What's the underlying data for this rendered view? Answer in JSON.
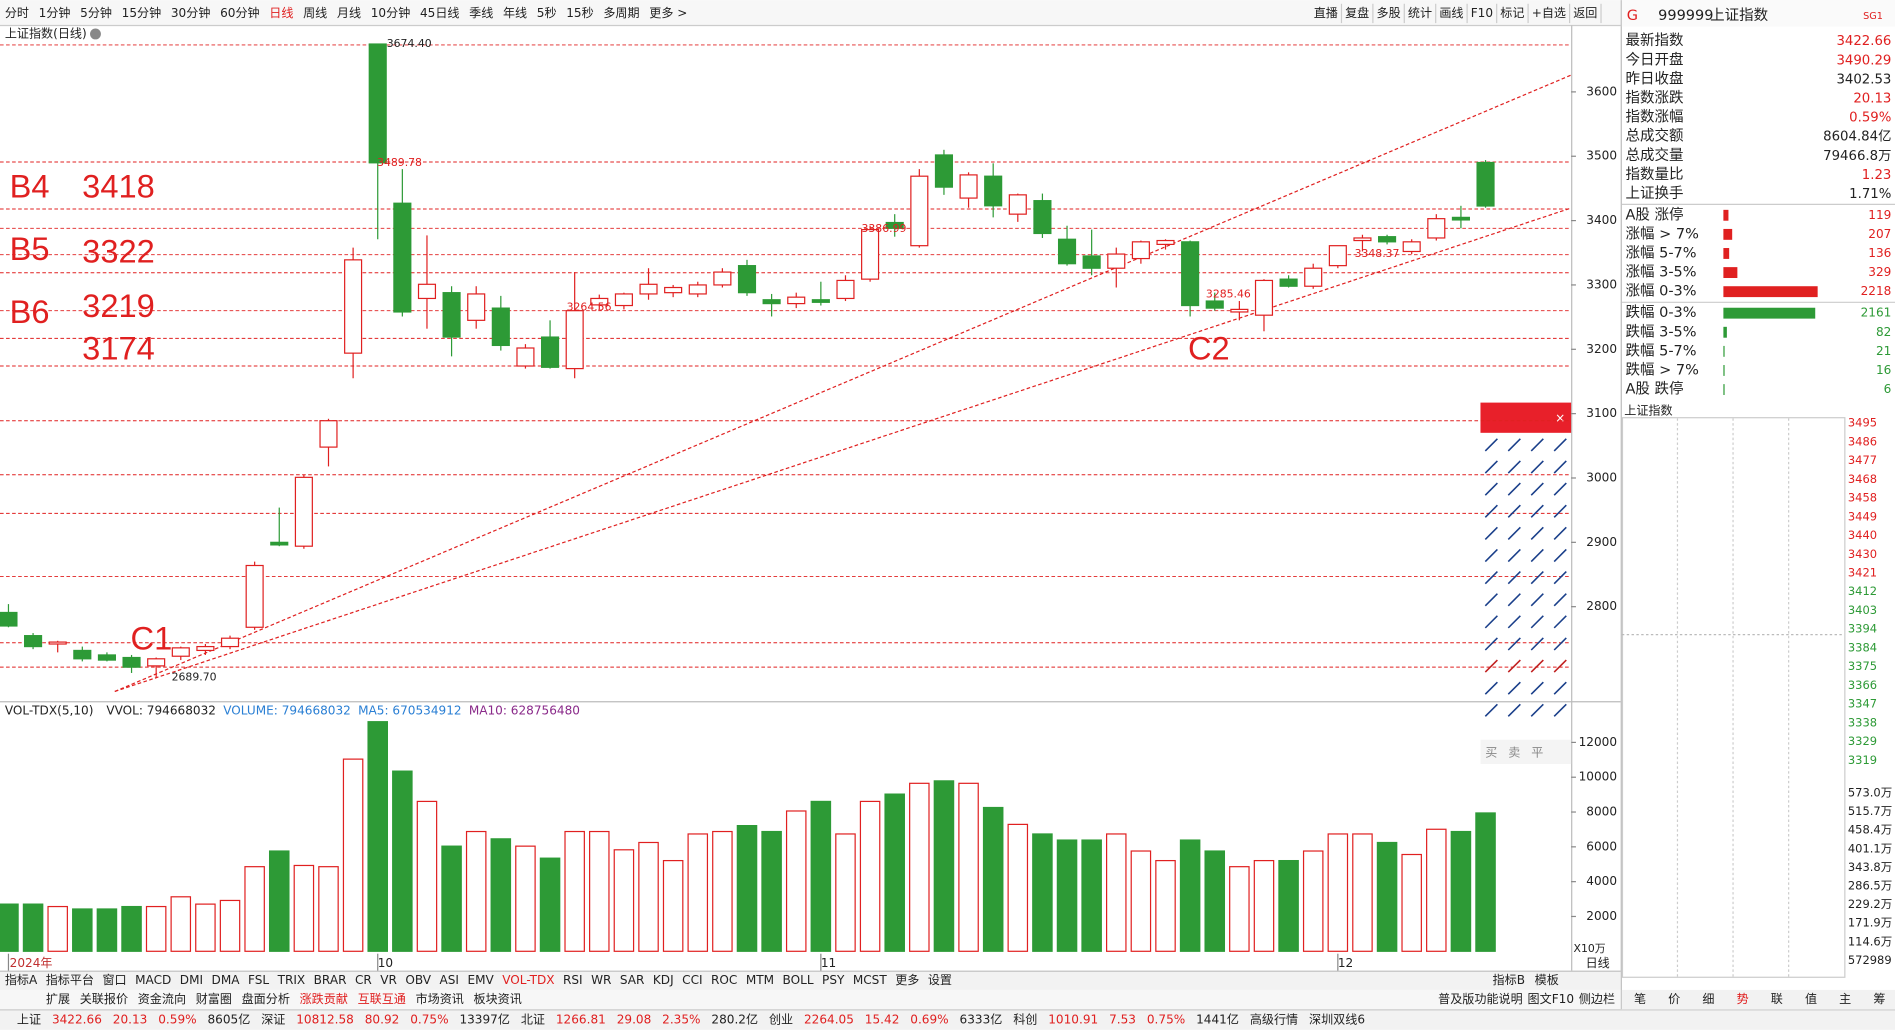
{
  "toolbar": {
    "periods": [
      "分时",
      "1分钟",
      "5分钟",
      "15分钟",
      "30分钟",
      "60分钟",
      {
        "text": "日线",
        "color": "#e02020"
      },
      "周线",
      "月线",
      "10分钟",
      "45日线",
      "季线",
      "年线",
      "5秒",
      "15秒",
      "多周期",
      "更多 >"
    ],
    "tools": [
      "直播",
      "复盘",
      "多股",
      "统计",
      "画线",
      "F10",
      "标记",
      "+自选",
      "返回"
    ]
  },
  "chart_data": [
    {
      "type": "candlestick",
      "title": "上证指数(日线)",
      "categories": [
        "2024年",
        null,
        null,
        null,
        null,
        null,
        null,
        null,
        null,
        null,
        null,
        null,
        null,
        null,
        null,
        "10",
        null,
        null,
        null,
        null,
        null,
        null,
        null,
        null,
        null,
        null,
        null,
        null,
        null,
        null,
        null,
        null,
        null,
        "11",
        null,
        null,
        null,
        null,
        null,
        null,
        null,
        null,
        null,
        null,
        null,
        null,
        null,
        null,
        null,
        null,
        null,
        null,
        null,
        null,
        "12",
        null,
        null,
        null,
        null,
        null,
        null
      ],
      "open": [
        2791,
        2755,
        2742,
        2732,
        2725,
        2721,
        2708,
        2723,
        2732,
        2738,
        2768,
        2900,
        2894,
        3048,
        3194,
        3674.4,
        3427,
        3279,
        3288,
        3245,
        3264,
        3174,
        3219,
        3170,
        3269,
        3268,
        3286,
        3288,
        3286,
        3300,
        3330,
        3277,
        3271,
        3277,
        3279,
        3309,
        3397,
        3361,
        3502,
        3435,
        3469,
        3410,
        3431,
        3371,
        3345,
        3326,
        3341,
        3363,
        3367,
        3275,
        3258,
        3253,
        3309,
        3298,
        3330,
        3369,
        3375,
        3352,
        3373,
        3405,
        3490.29
      ],
      "high": [
        2804,
        2759,
        2747,
        2738,
        2729,
        2725,
        2721,
        2738,
        2742,
        2755,
        2870,
        2954,
        3005,
        3092,
        3358,
        3674.4,
        3480,
        3377,
        3298,
        3298,
        3283,
        3208,
        3245,
        3320,
        3285,
        3288,
        3326,
        3300,
        3305,
        3326,
        3339,
        3286,
        3288,
        3305,
        3315,
        3392,
        3410,
        3480,
        3510,
        3475,
        3489,
        3442,
        3442,
        3392,
        3386,
        3358,
        3369,
        3371,
        3369,
        3288,
        3275,
        3309,
        3315,
        3333,
        3360,
        3378,
        3378,
        3371,
        3410,
        3423,
        3494
      ],
      "low": [
        2768,
        2734,
        2729,
        2715,
        2715,
        2697,
        2689.7,
        2717,
        2725,
        2734,
        2764,
        2894,
        2890,
        3018,
        3155,
        3371,
        3251,
        3232,
        3189,
        3232,
        3198,
        3170,
        3170,
        3155,
        3262,
        3262,
        3277,
        3281,
        3281,
        3296,
        3283,
        3251,
        3264,
        3268,
        3275,
        3305,
        3375,
        3358,
        3440,
        3420,
        3405,
        3398,
        3373,
        3330,
        3315,
        3296,
        3333,
        3355,
        3251,
        3260,
        3245,
        3228,
        3296,
        3294,
        3326,
        3352,
        3363,
        3348,
        3369,
        3388,
        3420
      ],
      "close": [
        2770,
        2738,
        2745,
        2719,
        2717,
        2706,
        2719,
        2736,
        2738,
        2751,
        2864,
        2896,
        3001,
        3089,
        3339,
        3489.78,
        3258,
        3301,
        3219,
        3286,
        3206,
        3202,
        3172,
        3260,
        3279,
        3286,
        3301,
        3296,
        3300,
        3320,
        3288,
        3271,
        3281,
        3273,
        3307,
        3386,
        3388,
        3469,
        3452,
        3471,
        3423,
        3440,
        3380,
        3333,
        3326,
        3348,
        3367,
        3369,
        3268,
        3264,
        3262,
        3307,
        3298,
        3326,
        3361,
        3373,
        3367,
        3367,
        3403,
        3401,
        3422.66
      ],
      "up_color": "#e02020",
      "down_color": "#2d9a36",
      "ylim": [
        2657,
        3705
      ],
      "yticks": [
        2800,
        2900,
        3000,
        3100,
        3200,
        3300,
        3400,
        3500,
        3600
      ],
      "hlines": [
        3673,
        3491,
        3418,
        3388,
        3347,
        3319,
        3260,
        3217,
        3174,
        3089,
        3005,
        2945,
        2847,
        2744,
        2706
      ],
      "price_labels": [
        {
          "value": 3674.4,
          "label": "3674.40"
        },
        {
          "value": 3489.78,
          "label": "3489.78"
        },
        {
          "value": 2689.7,
          "label": "2689.70"
        },
        {
          "value": 3386.99,
          "label": "3386.99"
        },
        {
          "value": 3264.56,
          "label": "3264.56"
        },
        {
          "value": 3285.46,
          "label": "3285.46"
        },
        {
          "value": 3348.37,
          "label": "3348.37"
        }
      ],
      "annotations": [
        "B4",
        "3418",
        "B5",
        "3322",
        "B6",
        "3219",
        "3174",
        "C1",
        "C2"
      ]
    },
    {
      "type": "bar",
      "title": "VOL-TDX(5,10)",
      "legend": [
        {
          "text": "VVOL: 794668032",
          "color": "#222222"
        },
        {
          "text": "VOLUME: 794668032",
          "color": "#2a7fd4"
        },
        {
          "text": "MA5: 670534912",
          "color": "#2a7fd4"
        },
        {
          "text": "MA10: 628756480",
          "color": "#8a2a8a"
        }
      ],
      "values": [
        2710,
        2710,
        2570,
        2430,
        2430,
        2570,
        2570,
        3130,
        2710,
        2920,
        4860,
        5760,
        4930,
        4860,
        11040,
        13190,
        10350,
        8610,
        6040,
        6880,
        6460,
        6040,
        5350,
        6880,
        6880,
        5830,
        6250,
        5210,
        6740,
        6880,
        7220,
        6880,
        8060,
        8610,
        6740,
        8610,
        9030,
        9650,
        9790,
        9650,
        8260,
        7290,
        6740,
        6390,
        6390,
        6740,
        5760,
        5210,
        6390,
        5760,
        4860,
        5210,
        5210,
        5760,
        6740,
        6740,
        6250,
        5560,
        7010,
        6880,
        7947
      ],
      "ylim": [
        0,
        13400
      ],
      "yticks": [
        2000,
        4000,
        6000,
        8000,
        10000,
        12000
      ],
      "unit": "X10万",
      "period": "日线"
    }
  ],
  "quote": {
    "flag": "G",
    "code": "999999",
    "name": "上证指数",
    "badge": "SG1",
    "rows": [
      {
        "label": "最新指数",
        "value": "3422.66",
        "color": "#e02020"
      },
      {
        "label": "今日开盘",
        "value": "3490.29",
        "color": "#e02020"
      },
      {
        "label": "昨日收盘",
        "value": "3402.53",
        "color": "#222222"
      },
      {
        "label": "指数涨跌",
        "value": "20.13",
        "color": "#e02020"
      },
      {
        "label": "指数涨幅",
        "value": "0.59%",
        "color": "#e02020"
      },
      {
        "label": "总成交额",
        "value": "8604.84亿",
        "color": "#222222"
      },
      {
        "label": "总成交量",
        "value": "79466.8万",
        "color": "#222222"
      },
      {
        "label": "指数量比",
        "value": "1.23",
        "color": "#e02020"
      },
      {
        "label": "上证换手",
        "value": "1.71%",
        "color": "#222222"
      }
    ],
    "breadth": [
      {
        "label": "A股 涨停",
        "value": 119,
        "color": "#e02020"
      },
      {
        "label": "涨幅 > 7%",
        "value": 207,
        "color": "#e02020"
      },
      {
        "label": "涨幅 5-7%",
        "value": 136,
        "color": "#e02020"
      },
      {
        "label": "涨幅 3-5%",
        "value": 329,
        "color": "#e02020"
      },
      {
        "label": "涨幅 0-3%",
        "value": 2218,
        "color": "#e02020"
      },
      {
        "label": "跌幅 0-3%",
        "value": 2161,
        "color": "#2d9a36"
      },
      {
        "label": "跌幅 3-5%",
        "value": 82,
        "color": "#2d9a36"
      },
      {
        "label": "跌幅 5-7%",
        "value": 21,
        "color": "#2d9a36"
      },
      {
        "label": "跌幅 > 7%",
        "value": 16,
        "color": "#2d9a36"
      },
      {
        "label": "A股 跌停",
        "value": 6,
        "color": "#2d9a36"
      }
    ]
  },
  "mini_chart": {
    "title": "上证指数",
    "price_labels": [
      "3495",
      "3486",
      "3477",
      "3468",
      "3458",
      "3449",
      "3440",
      "3430",
      "3421",
      "3412",
      "3403",
      "3394",
      "3384",
      "3375",
      "3366",
      "3347",
      "3338",
      "3329",
      "3319"
    ],
    "volume_labels": [
      "573.0万",
      "515.7万",
      "458.4万",
      "401.1万",
      "343.8万",
      "286.5万",
      "229.2万",
      "171.9万",
      "114.6万",
      "572989"
    ]
  },
  "palette": {
    "trade": [
      "买",
      "卖",
      "平"
    ]
  },
  "indicator_tabs": [
    "指标A",
    "指标平台",
    "窗口",
    "MACD",
    "DMI",
    "DMA",
    "FSL",
    "TRIX",
    "BRAR",
    "CR",
    "VR",
    "OBV",
    "ASI",
    "EMV",
    {
      "text": "VOL-TDX",
      "color": "#e02020"
    },
    "RSI",
    "WR",
    "SAR",
    "KDJ",
    "CCI",
    "ROC",
    "MTM",
    "BOLL",
    "PSY",
    "MCST",
    "更多",
    "设置"
  ],
  "indicator_right": [
    "指标B",
    "模板"
  ],
  "sub_tabs": [
    "扩展",
    "关联报价",
    "资金流向",
    "财富圈",
    "盘面分析",
    {
      "text": "涨跌贡献",
      "color": "#e02020"
    },
    {
      "text": "互联互通",
      "color": "#e02020"
    },
    "市场资讯",
    "板块资讯"
  ],
  "sub_right": [
    "普及版功能说明",
    "图文F10",
    "侧边栏"
  ],
  "side_tabs": [
    "笔",
    "价",
    "细",
    {
      "text": "势",
      "color": "#e02020"
    },
    "联",
    "值",
    "主",
    "筹"
  ],
  "status": [
    {
      "text": "上证",
      "color": "#222222"
    },
    {
      "text": "3422.66",
      "color": "#e02020"
    },
    {
      "text": "20.13",
      "color": "#e02020"
    },
    {
      "text": "0.59%",
      "color": "#e02020"
    },
    {
      "text": "8605亿",
      "color": "#222222"
    },
    {
      "text": "深证",
      "color": "#222222"
    },
    {
      "text": "10812.58",
      "color": "#e02020"
    },
    {
      "text": "80.92",
      "color": "#e02020"
    },
    {
      "text": "0.75%",
      "color": "#e02020"
    },
    {
      "text": "13397亿",
      "color": "#222222"
    },
    {
      "text": "北证",
      "color": "#222222"
    },
    {
      "text": "1266.81",
      "color": "#e02020"
    },
    {
      "text": "29.08",
      "color": "#e02020"
    },
    {
      "text": "2.35%",
      "color": "#e02020"
    },
    {
      "text": "280.2亿",
      "color": "#222222"
    },
    {
      "text": "创业",
      "color": "#222222"
    },
    {
      "text": "2264.05",
      "color": "#e02020"
    },
    {
      "text": "15.42",
      "color": "#e02020"
    },
    {
      "text": "0.69%",
      "color": "#e02020"
    },
    {
      "text": "6333亿",
      "color": "#222222"
    },
    {
      "text": "科创",
      "color": "#222222"
    },
    {
      "text": "1010.91",
      "color": "#e02020"
    },
    {
      "text": "7.53",
      "color": "#e02020"
    },
    {
      "text": "0.75%",
      "color": "#e02020"
    },
    {
      "text": "1441亿",
      "color": "#222222"
    },
    {
      "text": "高级行情",
      "color": "#222222"
    },
    {
      "text": "深圳双线6",
      "color": "#222222"
    }
  ]
}
